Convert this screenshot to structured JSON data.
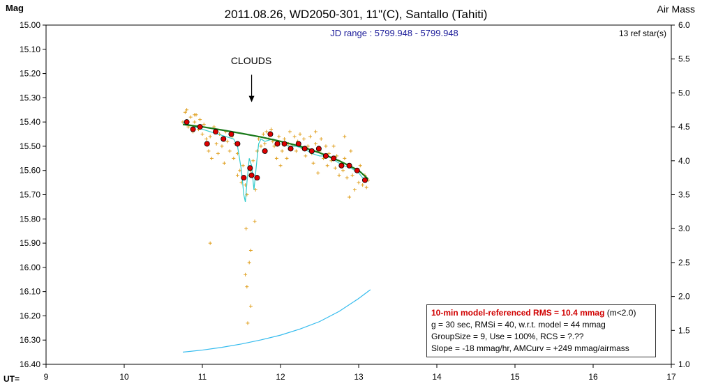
{
  "chart_data": {
    "type": "scatter",
    "title": "2011.08.26, WD2050-301, 11\"(C), Santallo (Tahiti)",
    "ylabel": "Mag",
    "y2label": "Air Mass",
    "xlabel": "UT=",
    "subtitle": "JD range : 5799.948 - 5799.948",
    "ref_stars": "13 ref star(s)",
    "annotation": {
      "text": "CLOUDS",
      "x": 11.63,
      "y_from": 15.205,
      "y_to": 15.315
    },
    "xlim": [
      9,
      17
    ],
    "ylim": [
      15.0,
      16.4
    ],
    "y2lim": [
      1.0,
      6.0
    ],
    "x_ticks": [
      "9",
      "10",
      "11",
      "12",
      "13",
      "14",
      "15",
      "16",
      "17"
    ],
    "y_ticks": [
      "15.00",
      "15.10",
      "15.20",
      "15.30",
      "15.40",
      "15.50",
      "15.60",
      "15.70",
      "15.80",
      "15.90",
      "16.00",
      "16.10",
      "16.20",
      "16.30",
      "16.40"
    ],
    "y2_ticks": [
      "6.0",
      "5.5",
      "5.0",
      "4.5",
      "4.0",
      "3.5",
      "3.0",
      "2.5",
      "2.0",
      "1.5",
      "1.0"
    ],
    "series": [
      {
        "name": "raw",
        "marker": "+",
        "color": "#e0a020",
        "points": [
          [
            10.75,
            15.4
          ],
          [
            10.78,
            15.36
          ],
          [
            10.8,
            15.35
          ],
          [
            10.82,
            15.42
          ],
          [
            10.85,
            15.38
          ],
          [
            10.88,
            15.44
          ],
          [
            10.9,
            15.4
          ],
          [
            10.92,
            15.37
          ],
          [
            10.95,
            15.43
          ],
          [
            10.97,
            15.39
          ],
          [
            11.0,
            15.45
          ],
          [
            11.02,
            15.41
          ],
          [
            11.05,
            15.47
          ],
          [
            11.08,
            15.52
          ],
          [
            11.1,
            15.46
          ],
          [
            11.12,
            15.55
          ],
          [
            11.15,
            15.42
          ],
          [
            11.18,
            15.49
          ],
          [
            11.2,
            15.53
          ],
          [
            11.22,
            15.45
          ],
          [
            11.25,
            15.5
          ],
          [
            11.28,
            15.57
          ],
          [
            11.3,
            15.44
          ],
          [
            11.32,
            15.48
          ],
          [
            11.35,
            15.52
          ],
          [
            11.38,
            15.46
          ],
          [
            11.4,
            15.55
          ],
          [
            11.42,
            15.49
          ],
          [
            11.45,
            15.53
          ],
          [
            11.48,
            15.6
          ],
          [
            11.5,
            15.65
          ],
          [
            11.52,
            15.58
          ],
          [
            11.55,
            15.66
          ],
          [
            11.57,
            15.7
          ],
          [
            11.6,
            15.62
          ],
          [
            11.62,
            15.6
          ],
          [
            11.65,
            15.56
          ],
          [
            11.68,
            15.68
          ],
          [
            11.7,
            15.52
          ],
          [
            11.72,
            15.47
          ],
          [
            11.75,
            15.5
          ],
          [
            11.78,
            15.45
          ],
          [
            11.8,
            15.49
          ],
          [
            11.82,
            15.44
          ],
          [
            11.85,
            15.47
          ],
          [
            11.88,
            15.43
          ],
          [
            11.9,
            15.48
          ],
          [
            11.92,
            15.5
          ],
          [
            11.95,
            15.55
          ],
          [
            11.98,
            15.46
          ],
          [
            12.0,
            15.58
          ],
          [
            12.02,
            15.52
          ],
          [
            12.05,
            15.47
          ],
          [
            12.08,
            15.55
          ],
          [
            12.1,
            15.49
          ],
          [
            12.12,
            15.44
          ],
          [
            12.15,
            15.5
          ],
          [
            12.18,
            15.46
          ],
          [
            12.2,
            15.52
          ],
          [
            12.22,
            15.48
          ],
          [
            12.25,
            15.45
          ],
          [
            12.28,
            15.51
          ],
          [
            12.3,
            15.47
          ],
          [
            12.32,
            15.54
          ],
          [
            12.35,
            15.5
          ],
          [
            12.38,
            15.46
          ],
          [
            12.4,
            15.53
          ],
          [
            12.42,
            15.57
          ],
          [
            12.45,
            15.49
          ],
          [
            12.48,
            15.61
          ],
          [
            12.5,
            15.52
          ],
          [
            12.52,
            15.47
          ],
          [
            12.55,
            15.55
          ],
          [
            12.58,
            15.5
          ],
          [
            12.6,
            15.58
          ],
          [
            12.62,
            15.53
          ],
          [
            12.65,
            15.56
          ],
          [
            12.68,
            15.5
          ],
          [
            12.7,
            15.59
          ],
          [
            12.72,
            15.54
          ],
          [
            12.75,
            15.62
          ],
          [
            12.78,
            15.57
          ],
          [
            12.8,
            15.6
          ],
          [
            12.82,
            15.55
          ],
          [
            12.85,
            15.63
          ],
          [
            12.88,
            15.58
          ],
          [
            12.9,
            15.52
          ],
          [
            12.92,
            15.62
          ],
          [
            12.95,
            15.68
          ],
          [
            12.98,
            15.6
          ],
          [
            13.0,
            15.65
          ],
          [
            13.02,
            15.58
          ],
          [
            13.05,
            15.66
          ],
          [
            13.08,
            15.62
          ],
          [
            13.1,
            15.67
          ],
          [
            13.12,
            15.64
          ],
          [
            10.9,
            15.37
          ],
          [
            11.45,
            15.62
          ],
          [
            12.45,
            15.44
          ],
          [
            12.88,
            15.71
          ],
          [
            12.82,
            15.46
          ],
          [
            11.56,
            15.84
          ],
          [
            11.67,
            15.81
          ],
          [
            11.62,
            15.93
          ],
          [
            11.6,
            15.98
          ],
          [
            11.55,
            16.03
          ],
          [
            11.57,
            16.08
          ],
          [
            11.62,
            16.16
          ],
          [
            11.58,
            16.23
          ],
          [
            11.1,
            15.9
          ]
        ]
      },
      {
        "name": "binned",
        "marker": "circle",
        "color": "#dd0000",
        "points": [
          [
            10.8,
            15.4
          ],
          [
            10.88,
            15.43
          ],
          [
            10.97,
            15.42
          ],
          [
            11.06,
            15.49
          ],
          [
            11.17,
            15.44
          ],
          [
            11.27,
            15.47
          ],
          [
            11.37,
            15.45
          ],
          [
            11.45,
            15.49
          ],
          [
            11.53,
            15.63
          ],
          [
            11.61,
            15.59
          ],
          [
            11.63,
            15.62
          ],
          [
            11.7,
            15.63
          ],
          [
            11.8,
            15.52
          ],
          [
            11.87,
            15.45
          ],
          [
            11.96,
            15.49
          ],
          [
            12.05,
            15.49
          ],
          [
            12.13,
            15.51
          ],
          [
            12.23,
            15.49
          ],
          [
            12.31,
            15.51
          ],
          [
            12.4,
            15.52
          ],
          [
            12.49,
            15.51
          ],
          [
            12.58,
            15.54
          ],
          [
            12.68,
            15.55
          ],
          [
            12.78,
            15.58
          ],
          [
            12.88,
            15.58
          ],
          [
            12.98,
            15.6
          ],
          [
            13.08,
            15.64
          ]
        ]
      },
      {
        "name": "model",
        "type": "line",
        "color": "#1a7a1a",
        "points": [
          [
            10.75,
            15.41
          ],
          [
            11.0,
            15.42
          ],
          [
            11.25,
            15.433
          ],
          [
            11.5,
            15.447
          ],
          [
            11.75,
            15.462
          ],
          [
            12.0,
            15.48
          ],
          [
            12.25,
            15.5
          ],
          [
            12.5,
            15.527
          ],
          [
            12.75,
            15.56
          ],
          [
            13.0,
            15.6
          ],
          [
            13.12,
            15.635
          ]
        ]
      },
      {
        "name": "smoothed",
        "type": "line",
        "color": "#33cccc",
        "points": [
          [
            10.75,
            15.4
          ],
          [
            10.9,
            15.42
          ],
          [
            11.0,
            15.43
          ],
          [
            11.1,
            15.44
          ],
          [
            11.2,
            15.45
          ],
          [
            11.3,
            15.46
          ],
          [
            11.4,
            15.47
          ],
          [
            11.45,
            15.5
          ],
          [
            11.5,
            15.6
          ],
          [
            11.53,
            15.7
          ],
          [
            11.55,
            15.73
          ],
          [
            11.57,
            15.65
          ],
          [
            11.6,
            15.55
          ],
          [
            11.63,
            15.58
          ],
          [
            11.66,
            15.68
          ],
          [
            11.7,
            15.55
          ],
          [
            11.72,
            15.49
          ],
          [
            11.75,
            15.47
          ],
          [
            11.8,
            15.48
          ],
          [
            11.9,
            15.47
          ],
          [
            12.0,
            15.48
          ],
          [
            12.1,
            15.5
          ],
          [
            12.2,
            15.5
          ],
          [
            12.3,
            15.51
          ],
          [
            12.4,
            15.53
          ],
          [
            12.5,
            15.54
          ],
          [
            12.6,
            15.54
          ],
          [
            12.7,
            15.56
          ],
          [
            12.8,
            15.58
          ],
          [
            12.9,
            15.59
          ],
          [
            13.0,
            15.61
          ],
          [
            13.05,
            15.63
          ],
          [
            13.12,
            15.64
          ]
        ]
      },
      {
        "name": "airmass",
        "type": "line",
        "axis": "right",
        "color": "#33bbee",
        "points": [
          [
            10.75,
            1.18
          ],
          [
            11.0,
            1.21
          ],
          [
            11.25,
            1.25
          ],
          [
            11.5,
            1.3
          ],
          [
            11.75,
            1.36
          ],
          [
            12.0,
            1.43
          ],
          [
            12.25,
            1.52
          ],
          [
            12.5,
            1.63
          ],
          [
            12.75,
            1.78
          ],
          [
            13.0,
            1.97
          ],
          [
            13.15,
            2.1
          ]
        ]
      }
    ]
  },
  "legend": {
    "line1_red": "10-min model-referenced RMS = 10.4 mmag",
    "line1_rest": " (m<2.0)",
    "line2": "g = 30 sec, RMSi = 40, w.r.t. model = 44 mmag",
    "line3": "GroupSize = 9, Use = 100%, RCS = ?.??",
    "line4": "Slope = -18 mmag/hr, AMCurv = +249 mmag/airmass"
  }
}
